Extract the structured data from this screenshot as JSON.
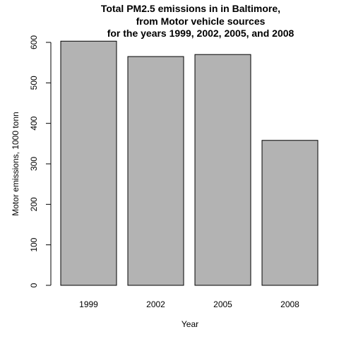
{
  "chart_data": {
    "type": "bar",
    "title_lines": [
      "Total PM2.5 emissions in in Baltimore,",
      "from Motor vehicle sources",
      "for the years 1999, 2002, 2005, and 2008"
    ],
    "xlabel": "Year",
    "ylabel": "Motor emissions, 1000 tonn",
    "categories": [
      "1999",
      "2002",
      "2005",
      "2008"
    ],
    "values": [
      603,
      565,
      570,
      358
    ],
    "ylim": [
      0,
      600
    ],
    "yticks": [
      "0",
      "100",
      "200",
      "300",
      "400",
      "500",
      "600"
    ],
    "bar_color": "#b3b3b3",
    "grid": false,
    "legend": "none"
  }
}
